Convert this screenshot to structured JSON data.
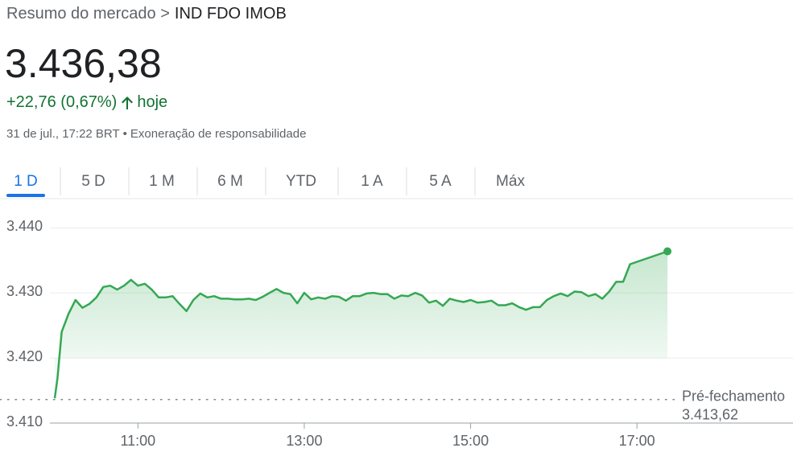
{
  "breadcrumb": {
    "prefix": "Resumo do mercado >",
    "name": "IND FDO IMOB"
  },
  "price": "3.436,38",
  "change": "+22,76 (0,67%)",
  "period": "hoje",
  "timestamp": "31 de jul., 17:22 BRT",
  "separator": "•",
  "disclaimer": "Exoneração de responsabilidade",
  "tabs": [
    "1 D",
    "5 D",
    "1 M",
    "6 M",
    "YTD",
    "1 A",
    "5 A",
    "Máx"
  ],
  "chart_data": {
    "type": "line",
    "color": "#34a853",
    "x": [
      600,
      602,
      605,
      610,
      615,
      620,
      625,
      630,
      635,
      640,
      645,
      650,
      655,
      660,
      665,
      670,
      675,
      680,
      685,
      690,
      695,
      700,
      705,
      710,
      715,
      720,
      725,
      730,
      735,
      740,
      745,
      750,
      755,
      760,
      765,
      770,
      775,
      780,
      785,
      790,
      795,
      800,
      805,
      810,
      815,
      820,
      825,
      830,
      835,
      840,
      845,
      850,
      855,
      860,
      865,
      870,
      875,
      880,
      885,
      890,
      895,
      900,
      905,
      910,
      915,
      920,
      925,
      930,
      935,
      940,
      945,
      950,
      955,
      960,
      965,
      970,
      975,
      980,
      985,
      990,
      995,
      1000,
      1005,
      1010,
      1015,
      1042
    ],
    "values": [
      3413.8,
      3416.9,
      3424,
      3426.8,
      3428.9,
      3427.7,
      3428.3,
      3429.3,
      3430.9,
      3431.1,
      3430.5,
      3431.1,
      3432,
      3431.1,
      3431.4,
      3430.5,
      3429.3,
      3429.3,
      3429.5,
      3428.3,
      3427.2,
      3428.9,
      3429.9,
      3429.3,
      3429.5,
      3429.1,
      3429.1,
      3429,
      3429,
      3429.1,
      3428.9,
      3429.4,
      3430,
      3430.6,
      3430,
      3429.8,
      3428.4,
      3430,
      3429,
      3429.3,
      3429.1,
      3429.5,
      3429.4,
      3428.8,
      3429.5,
      3429.5,
      3429.9,
      3430,
      3429.8,
      3429.8,
      3429.1,
      3429.6,
      3429.5,
      3430,
      3429.6,
      3428.5,
      3428.8,
      3428,
      3429.1,
      3428.8,
      3428.6,
      3428.9,
      3428.5,
      3428.6,
      3428.8,
      3428.1,
      3428.1,
      3428.4,
      3427.8,
      3427.4,
      3427.8,
      3427.8,
      3428.9,
      3429.5,
      3429.9,
      3429.5,
      3430.2,
      3430.1,
      3429.5,
      3429.8,
      3429.1,
      3430.2,
      3431.7,
      3431.7,
      3434.4,
      3436.38
    ],
    "xlim": [
      600,
      1053
    ],
    "xticks": [
      {
        "value": 660,
        "label": "11:00"
      },
      {
        "value": 780,
        "label": "13:00"
      },
      {
        "value": 900,
        "label": "15:00"
      },
      {
        "value": 1020,
        "label": "17:00"
      }
    ],
    "ylim": [
      3410,
      3442
    ],
    "yticks": [
      {
        "value": 3410,
        "label": "3.410"
      },
      {
        "value": 3420,
        "label": "3.420"
      },
      {
        "value": 3430,
        "label": "3.430"
      },
      {
        "value": 3440,
        "label": "3.440"
      }
    ],
    "grid": true,
    "previous_close": {
      "label": "Pré-fechamento",
      "value": 3413.62,
      "value_label": "3.413,62"
    }
  }
}
